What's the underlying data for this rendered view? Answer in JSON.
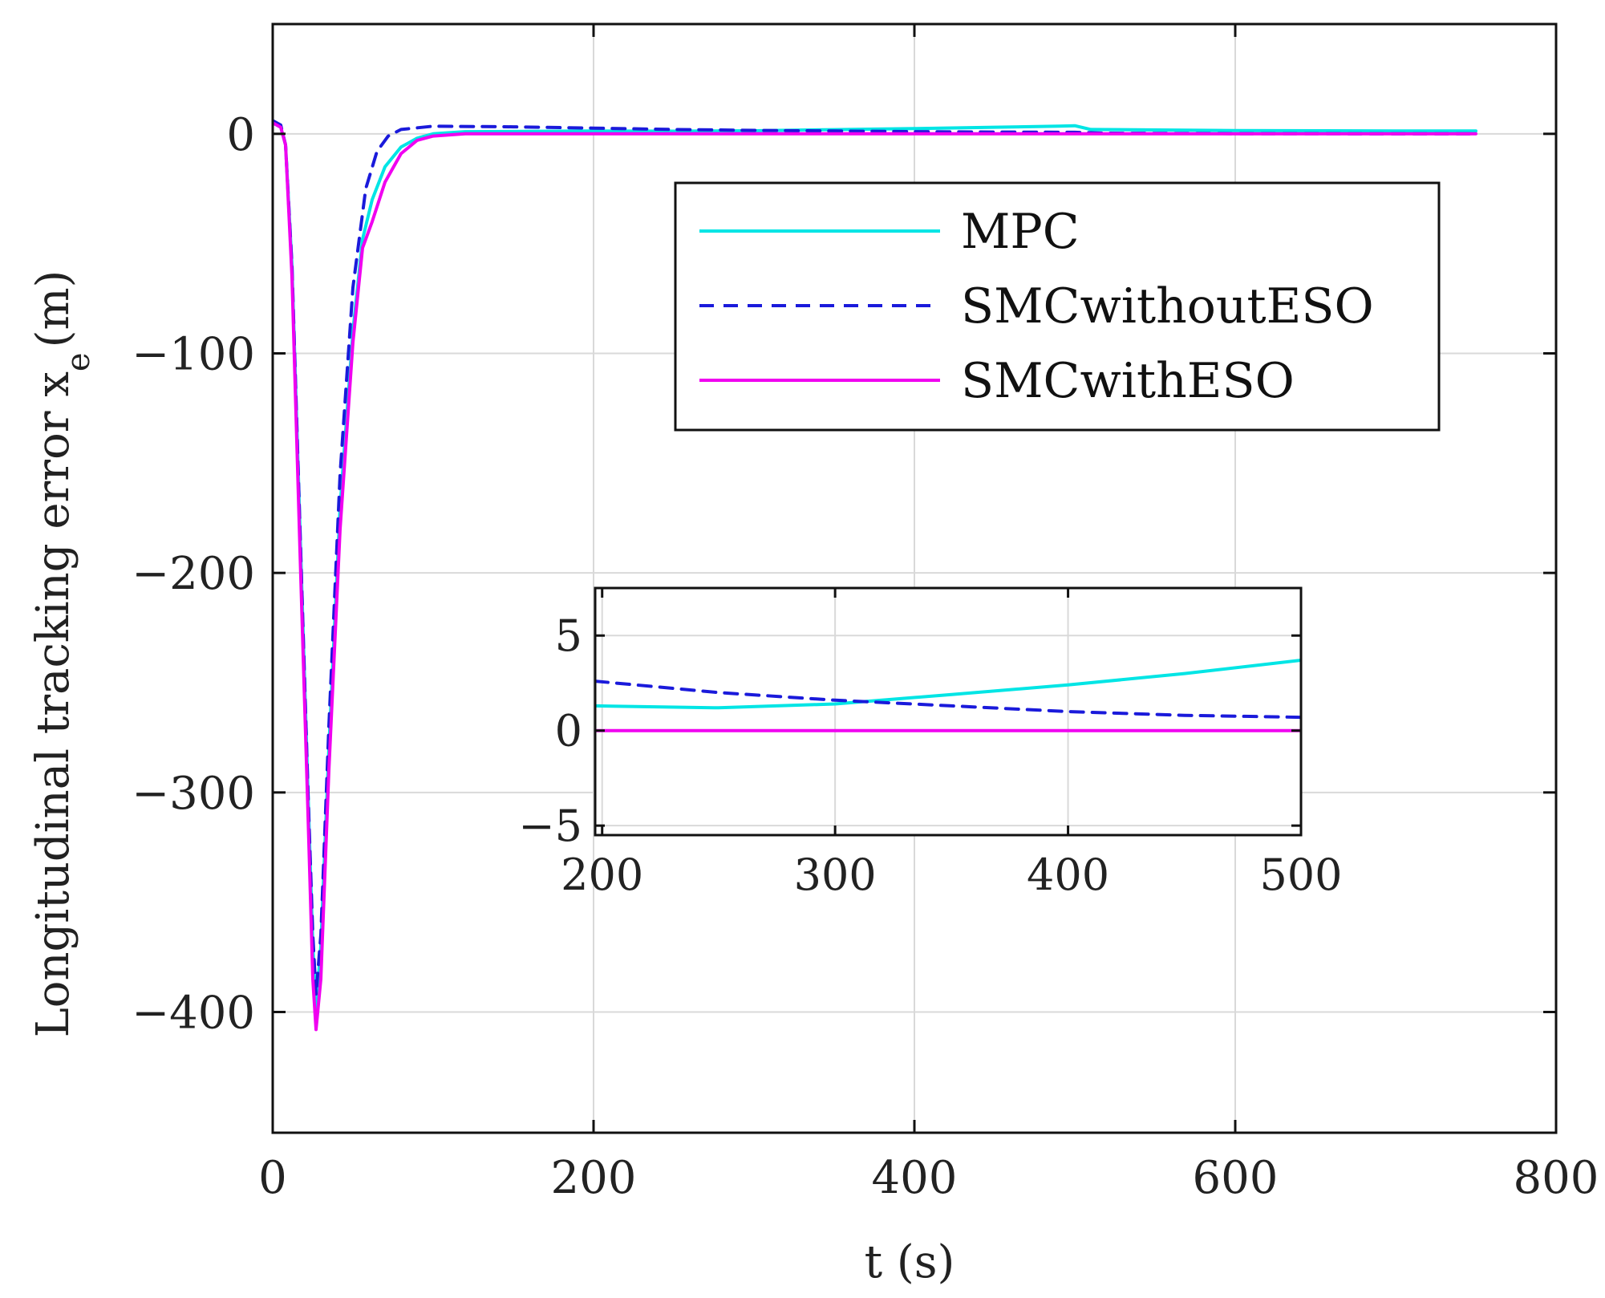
{
  "chart_data": [
    {
      "id": "main",
      "type": "line",
      "xlabel": "t (s)",
      "ylabel_main": "Longitudinal tracking error x",
      "ylabel_sub": "e",
      "ylabel_unit": "(m)",
      "xlim": [
        0,
        800
      ],
      "ylim": [
        -455,
        50
      ],
      "xticks": [
        0,
        200,
        400,
        600,
        800
      ],
      "xtick_labels": [
        "0",
        "200",
        "400",
        "600",
        "800"
      ],
      "yticks": [
        -400,
        -300,
        -200,
        -100,
        0
      ],
      "ytick_labels": [
        "−400",
        "−300",
        "−200",
        "−100",
        "0"
      ],
      "grid": true,
      "legend": {
        "placement": "top-right",
        "entries": [
          {
            "label": "MPC",
            "color": "#00e5e5",
            "style": "solid"
          },
          {
            "label": "SMCwithoutESO",
            "color": "#1a1adb",
            "style": "dashed"
          },
          {
            "label": "SMCwithESO",
            "color": "#f000f0",
            "style": "solid"
          }
        ]
      },
      "series": [
        {
          "name": "MPC",
          "color": "#00e5e5",
          "style": "solid",
          "points": [
            [
              0,
              5
            ],
            [
              5,
              3
            ],
            [
              8,
              -5
            ],
            [
              12,
              -60
            ],
            [
              17,
              -180
            ],
            [
              22,
              -300
            ],
            [
              25,
              -370
            ],
            [
              27,
              -398
            ],
            [
              30,
              -370
            ],
            [
              35,
              -280
            ],
            [
              42,
              -170
            ],
            [
              50,
              -90
            ],
            [
              56,
              -48
            ],
            [
              62,
              -30
            ],
            [
              70,
              -15
            ],
            [
              80,
              -6
            ],
            [
              90,
              -2
            ],
            [
              100,
              0
            ],
            [
              120,
              1
            ],
            [
              200,
              1.3
            ],
            [
              250,
              1.2
            ],
            [
              300,
              1.4
            ],
            [
              350,
              1.9
            ],
            [
              400,
              2.4
            ],
            [
              450,
              3.0
            ],
            [
              490,
              3.5
            ],
            [
              500,
              3.7
            ],
            [
              510,
              2.0
            ],
            [
              600,
              1.5
            ],
            [
              700,
              1.3
            ],
            [
              750,
              1.3
            ]
          ]
        },
        {
          "name": "SMCwithoutESO",
          "color": "#1a1adb",
          "style": "dashed",
          "points": [
            [
              0,
              6
            ],
            [
              5,
              4
            ],
            [
              8,
              -5
            ],
            [
              12,
              -60
            ],
            [
              17,
              -180
            ],
            [
              22,
              -300
            ],
            [
              25,
              -365
            ],
            [
              27,
              -392
            ],
            [
              30,
              -365
            ],
            [
              35,
              -270
            ],
            [
              42,
              -155
            ],
            [
              50,
              -70
            ],
            [
              58,
              -25
            ],
            [
              65,
              -8
            ],
            [
              72,
              -1
            ],
            [
              80,
              2
            ],
            [
              100,
              3.5
            ],
            [
              150,
              3.2
            ],
            [
              200,
              2.6
            ],
            [
              250,
              2.0
            ],
            [
              300,
              1.6
            ],
            [
              350,
              1.3
            ],
            [
              400,
              1.0
            ],
            [
              450,
              0.8
            ],
            [
              500,
              0.7
            ],
            [
              520,
              0.3
            ],
            [
              600,
              0.1
            ],
            [
              750,
              0
            ]
          ]
        },
        {
          "name": "SMCwithESO",
          "color": "#f000f0",
          "style": "solid",
          "points": [
            [
              0,
              5
            ],
            [
              5,
              3
            ],
            [
              8,
              -5
            ],
            [
              12,
              -65
            ],
            [
              17,
              -190
            ],
            [
              22,
              -310
            ],
            [
              25,
              -385
            ],
            [
              27,
              -408
            ],
            [
              30,
              -385
            ],
            [
              35,
              -290
            ],
            [
              42,
              -180
            ],
            [
              50,
              -95
            ],
            [
              56,
              -52
            ],
            [
              62,
              -40
            ],
            [
              70,
              -22
            ],
            [
              80,
              -9
            ],
            [
              90,
              -3
            ],
            [
              100,
              -1
            ],
            [
              120,
              0
            ],
            [
              200,
              0
            ],
            [
              300,
              0
            ],
            [
              400,
              0
            ],
            [
              500,
              0
            ],
            [
              600,
              0
            ],
            [
              750,
              0
            ]
          ]
        }
      ]
    },
    {
      "id": "inset",
      "type": "line",
      "xlim": [
        197,
        500
      ],
      "ylim": [
        -5.5,
        7.5
      ],
      "xticks": [
        200,
        300,
        400,
        500
      ],
      "xtick_labels": [
        "200",
        "300",
        "400",
        "500"
      ],
      "yticks": [
        -5,
        0,
        5
      ],
      "ytick_labels": [
        "−5",
        "0",
        "5"
      ],
      "grid": true,
      "series": [
        {
          "name": "MPC",
          "color": "#00e5e5",
          "style": "solid",
          "points": [
            [
              197,
              1.3
            ],
            [
              250,
              1.2
            ],
            [
              300,
              1.4
            ],
            [
              350,
              1.9
            ],
            [
              400,
              2.4
            ],
            [
              450,
              3.0
            ],
            [
              500,
              3.7
            ]
          ]
        },
        {
          "name": "SMCwithoutESO",
          "color": "#1a1adb",
          "style": "dashed",
          "points": [
            [
              197,
              2.6
            ],
            [
              250,
              2.0
            ],
            [
              300,
              1.6
            ],
            [
              350,
              1.3
            ],
            [
              400,
              1.0
            ],
            [
              450,
              0.8
            ],
            [
              500,
              0.7
            ]
          ]
        },
        {
          "name": "SMCwithESO",
          "color": "#f000f0",
          "style": "solid",
          "points": [
            [
              197,
              0
            ],
            [
              300,
              0
            ],
            [
              400,
              0
            ],
            [
              500,
              0
            ]
          ]
        }
      ]
    }
  ]
}
